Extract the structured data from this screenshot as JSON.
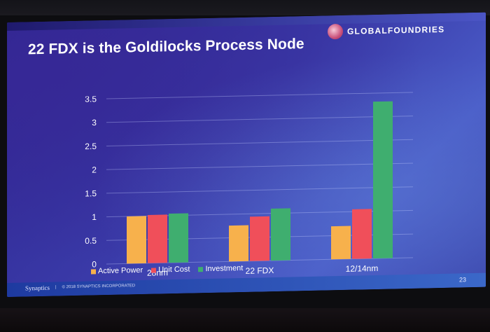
{
  "slide": {
    "title": "22 FDX is the Goldilocks Process Node",
    "logo_text": "GLOBALFOUNDRIES",
    "logo_icon": "globalfoundries-logo-icon",
    "footer_brand": "Synaptics",
    "footer_separator": "|",
    "footer_text": "© 2018 SYNAPTICS INCORPORATED",
    "page_number": "23"
  },
  "colors": {
    "active_power": "#f7b14c",
    "unit_cost": "#f04f5a",
    "investment": "#3fae6f"
  },
  "chart_data": {
    "type": "bar",
    "categories": [
      "28nm",
      "22 FDX",
      "12/14nm"
    ],
    "series": [
      {
        "name": "Active Power",
        "values": [
          1.0,
          0.76,
          0.7
        ]
      },
      {
        "name": "Unit Cost",
        "values": [
          1.02,
          0.94,
          1.05
        ]
      },
      {
        "name": "Investment",
        "values": [
          1.04,
          1.1,
          3.32
        ]
      }
    ],
    "ylim": [
      0,
      3.5
    ],
    "yticks": [
      "0",
      "0.5",
      "1",
      "1.5",
      "2",
      "2.5",
      "3",
      "3.5"
    ],
    "grid": true,
    "legend_position": "bottom"
  }
}
